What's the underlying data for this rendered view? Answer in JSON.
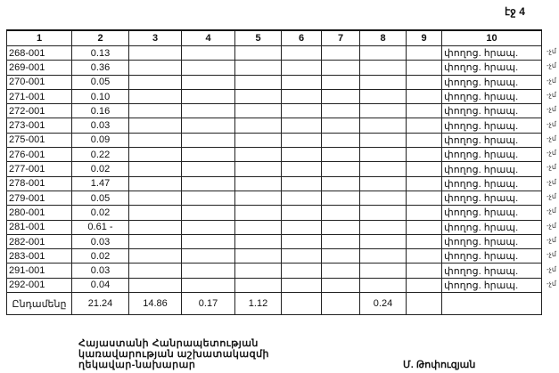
{
  "page_label": "էջ 4",
  "headers": [
    "1",
    "2",
    "3",
    "4",
    "5",
    "6",
    "7",
    "8",
    "9",
    "10"
  ],
  "rows": [
    {
      "id": "268-001",
      "c2": "0.13",
      "c10": "փողոց. հրապ."
    },
    {
      "id": "269-001",
      "c2": "0.36",
      "c10": "փողոց. հրապ."
    },
    {
      "id": "270-001",
      "c2": "0.05",
      "c10": "փողոց. հրապ."
    },
    {
      "id": "271-001",
      "c2": "0.10",
      "c10": "փողոց. հրապ."
    },
    {
      "id": "272-001",
      "c2": "0.16",
      "c10": "փողոց. հրապ."
    },
    {
      "id": "273-001",
      "c2": "0.03",
      "c10": "փողոց. հրապ."
    },
    {
      "id": "275-001",
      "c2": "0.09",
      "c10": "փողոց. հրապ."
    },
    {
      "id": "276-001",
      "c2": "0.22",
      "c10": "փողոց. հրապ."
    },
    {
      "id": "277-001",
      "c2": "0.02",
      "c10": "փողոց. հրապ."
    },
    {
      "id": "278-001",
      "c2": "1.47",
      "c10": "փողոց. հրապ."
    },
    {
      "id": "279-001",
      "c2": "0.05",
      "c10": "փողոց. հրապ."
    },
    {
      "id": "280-001",
      "c2": "0.02",
      "c10": "փողոց. հրապ."
    },
    {
      "id": "281-001",
      "c2": "0.61 -",
      "c10": "փողոց. հրապ."
    },
    {
      "id": "282-001",
      "c2": "0.03",
      "c10": "փողոց. հրապ."
    },
    {
      "id": "283-001",
      "c2": "0.02",
      "c10": "փողոց. հրապ."
    },
    {
      "id": "291-001",
      "c2": "0.03",
      "c10": "փողոց. հրապ."
    },
    {
      "id": "292-001",
      "c2": "0.04",
      "c10": "փողոց. հրապ."
    }
  ],
  "total": {
    "label": "Ընդամենը",
    "c2": "21.24",
    "c3": "14.86",
    "c4": "0.17",
    "c5": "1.12",
    "c8": "0.24"
  },
  "margin_note": "-չմ",
  "footer": {
    "line1": "Հայաստանի Հանրապետության",
    "line2": "կառավարության աշխատակազմի",
    "line3": "ղեկավար-նախարար",
    "signature": "Մ. Թոփուզյան"
  }
}
